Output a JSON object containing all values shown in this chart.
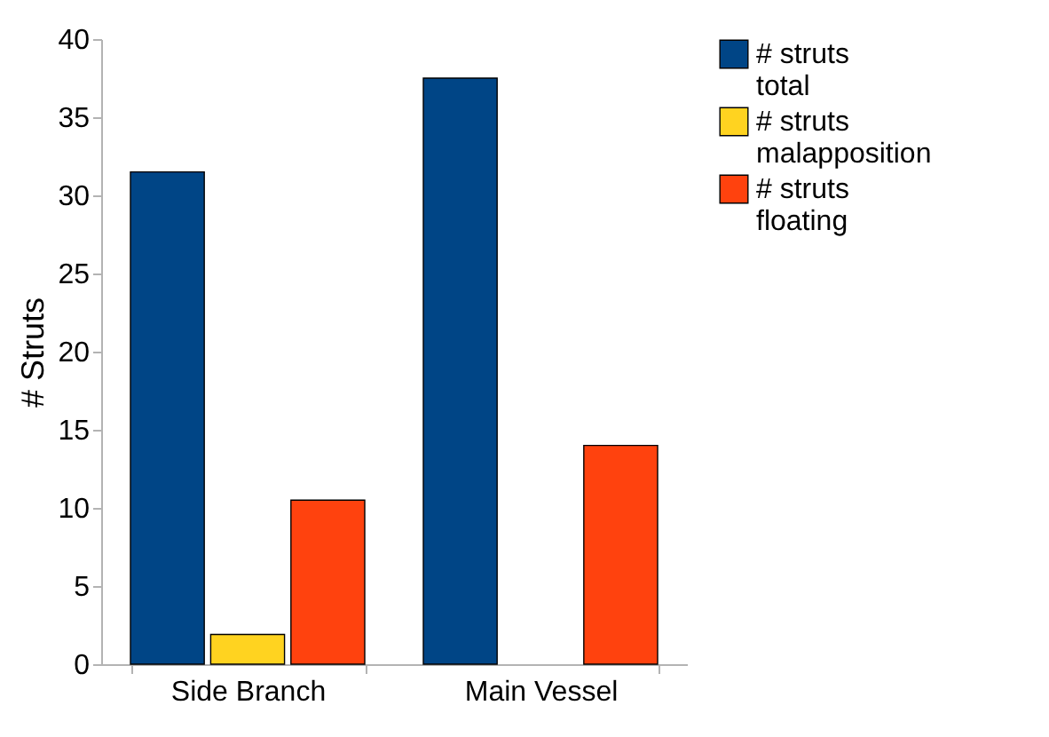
{
  "chart_data": {
    "type": "bar",
    "ylabel": "# Struts",
    "categories": [
      "Side Branch",
      "Main Vessel"
    ],
    "series": [
      {
        "name": "# struts total",
        "color": "#004586",
        "values": [
          31.5,
          37.5
        ]
      },
      {
        "name": "# struts malapposition",
        "color": "#ffd320",
        "values": [
          1.9,
          null
        ]
      },
      {
        "name": "# struts floating",
        "color": "#ff420e",
        "values": [
          10.5,
          14
        ]
      }
    ],
    "ylim": [
      0,
      40
    ],
    "yticks": [
      0,
      5,
      10,
      15,
      20,
      25,
      30,
      35,
      40
    ],
    "grid": false,
    "legend": "right"
  }
}
